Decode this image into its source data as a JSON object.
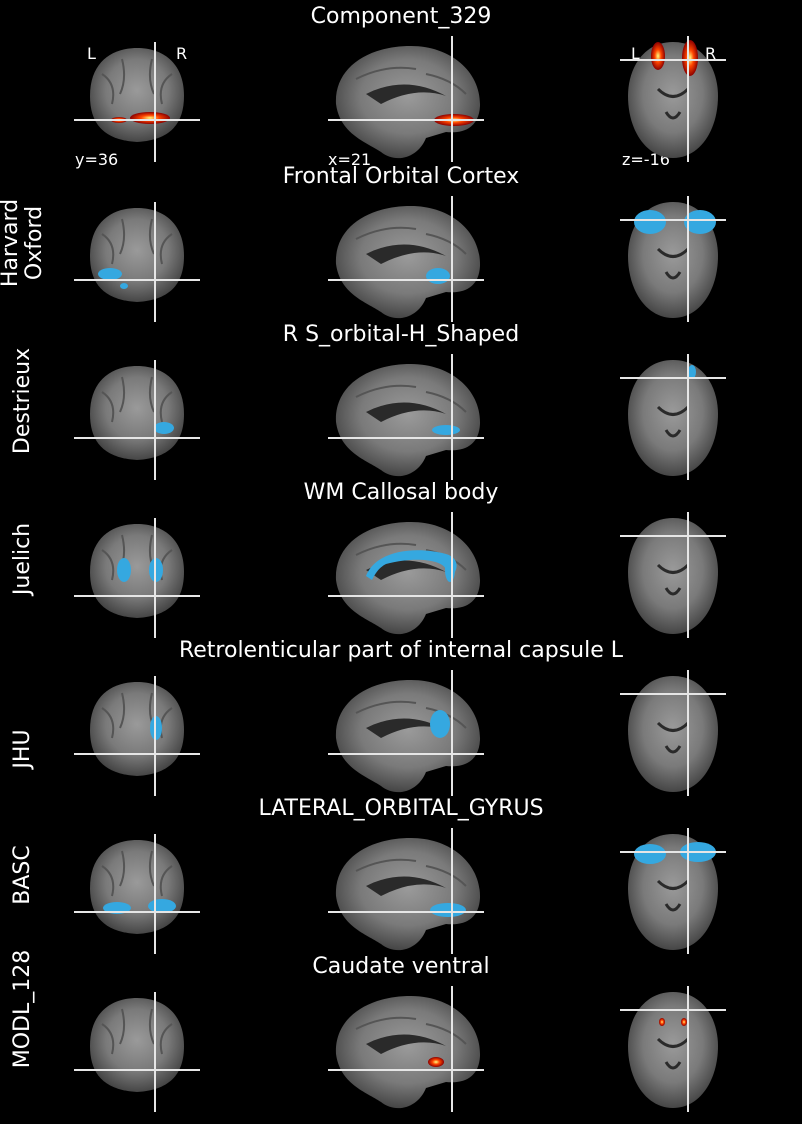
{
  "rows": [
    {
      "title": "Component_329",
      "atlas": "",
      "overlay": "heat",
      "coords": {
        "y": "y=36",
        "x": "x=21",
        "z": "z=-16"
      },
      "orient": {
        "left": "L",
        "right": "R"
      }
    },
    {
      "title": "Frontal Orbital Cortex",
      "atlas": "Harvard\nOxford",
      "overlay": "blue"
    },
    {
      "title": "R S_orbital-H_Shaped",
      "atlas": "Destrieux",
      "overlay": "blue"
    },
    {
      "title": "WM Callosal body",
      "atlas": "Juelich",
      "overlay": "blue"
    },
    {
      "title": "Retrolenticular part of internal capsule L",
      "atlas": "JHU",
      "overlay": "blue"
    },
    {
      "title": "LATERAL_ORBITAL_GYRUS",
      "atlas": "BASC",
      "overlay": "blue"
    },
    {
      "title": "Caudate ventral",
      "atlas": "MODL_128",
      "overlay": "heat"
    }
  ],
  "colors": {
    "blue": "#35a8e0",
    "heat_low": "#8b0000",
    "heat_mid": "#ff4500",
    "heat_high": "#ffff80"
  }
}
